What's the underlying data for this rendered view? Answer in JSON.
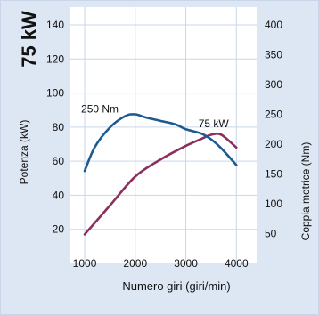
{
  "chart_data": {
    "type": "line",
    "title": "75 kW",
    "xlabel": "Numero giri (giri/min)",
    "ylabel_left": "Potenza (kW)",
    "ylabel_right": "Coppia motrice (Nm)",
    "xlim": [
      700,
      4400
    ],
    "x_ticks": [
      "1000",
      "2000",
      "3000",
      "4000"
    ],
    "ylim_left": [
      0,
      140
    ],
    "y_ticks_left": [
      "20",
      "40",
      "60",
      "80",
      "100",
      "120",
      "140"
    ],
    "ylim_right": [
      0,
      400
    ],
    "y_ticks_right": [
      "50",
      "100",
      "150",
      "200",
      "250",
      "300",
      "350",
      "400"
    ],
    "grid": true,
    "series": [
      {
        "name": "Potenza (kW)",
        "axis": "left",
        "color": "#8b2f5c",
        "x": [
          1000,
          1500,
          2000,
          2500,
          3000,
          3300,
          3500,
          3700,
          4000
        ],
        "y": [
          17,
          34,
          51,
          61,
          69,
          73,
          75.5,
          75.5,
          68
        ]
      },
      {
        "name": "Coppia motrice (Nm)",
        "axis": "right",
        "color": "#1e5a92",
        "x": [
          1000,
          1200,
          1500,
          1800,
          2000,
          2200,
          2500,
          2800,
          3000,
          3300,
          3500,
          3700,
          4000
        ],
        "y": [
          155,
          195,
          228,
          247,
          250,
          245,
          239,
          233,
          225,
          218,
          208,
          193,
          165
        ]
      }
    ],
    "annotations": [
      {
        "text": "75 kW",
        "x": 3550,
        "y": 80,
        "axis": "left"
      },
      {
        "text": "250 Nm",
        "x": 1300,
        "y": 253,
        "axis": "right"
      }
    ]
  }
}
